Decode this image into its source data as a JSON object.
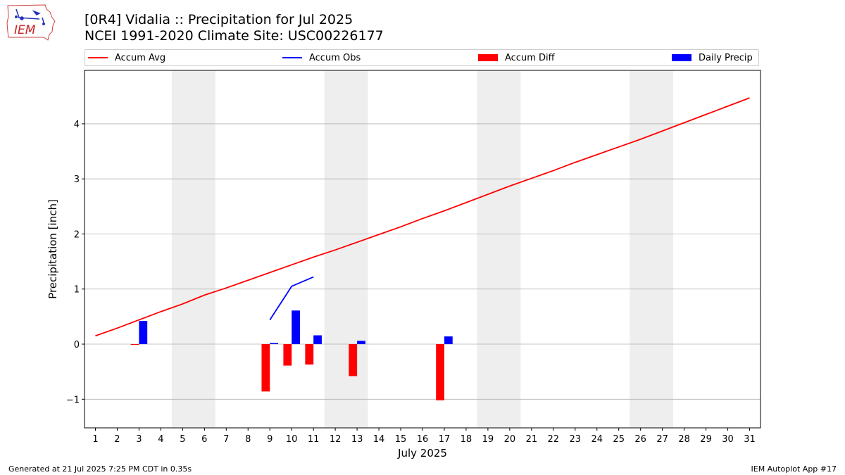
{
  "header": {
    "title_line1": "[0R4] Vidalia :: Precipitation for Jul 2025",
    "title_line2": "NCEI 1991-2020 Climate Site: USC00226177",
    "logo_text": "IEM"
  },
  "footer": {
    "generated": "Generated at 21 Jul 2025 7:25 PM CDT in 0.35s",
    "app": "IEM Autoplot App #17"
  },
  "colors": {
    "avg": "#ff0000",
    "obs": "#0000ff",
    "diff": "#ff0000",
    "daily": "#0000ff",
    "weekend": "#eeeeee",
    "grid": "#b0b0b0"
  },
  "chart_data": {
    "type": "bar",
    "title": "[0R4] Vidalia :: Precipitation for Jul 2025",
    "subtitle": "NCEI 1991-2020 Climate Site: USC00226177",
    "xlabel": "July 2025",
    "ylabel": "Precipitation [inch]",
    "xlim": [
      0.5,
      31.5
    ],
    "ylim": [
      -1.52,
      4.97
    ],
    "yticks": [
      -1,
      0,
      1,
      2,
      3,
      4
    ],
    "ytick_labels": [
      "−1",
      "0",
      "1",
      "2",
      "3",
      "4"
    ],
    "legend_position": "top",
    "grid": "y",
    "categories": [
      "1",
      "2",
      "3",
      "4",
      "5",
      "6",
      "7",
      "8",
      "9",
      "10",
      "11",
      "12",
      "13",
      "14",
      "15",
      "16",
      "17",
      "18",
      "19",
      "20",
      "21",
      "22",
      "23",
      "24",
      "25",
      "26",
      "27",
      "28",
      "29",
      "30",
      "31"
    ],
    "weekend_spans": [
      [
        4.5,
        6.5
      ],
      [
        11.5,
        13.5
      ],
      [
        18.5,
        20.5
      ],
      [
        25.5,
        27.5
      ]
    ],
    "series": [
      {
        "name": "Accum Avg",
        "kind": "line",
        "x": [
          1,
          2,
          3,
          4,
          5,
          6,
          7,
          8,
          9,
          10,
          11,
          12,
          13,
          14,
          15,
          16,
          17,
          18,
          19,
          20,
          21,
          22,
          23,
          24,
          25,
          26,
          27,
          28,
          29,
          30,
          31
        ],
        "values": [
          0.15,
          0.29,
          0.44,
          0.59,
          0.73,
          0.89,
          1.02,
          1.16,
          1.3,
          1.44,
          1.58,
          1.71,
          1.85,
          1.99,
          2.13,
          2.28,
          2.42,
          2.57,
          2.72,
          2.87,
          3.01,
          3.15,
          3.3,
          3.44,
          3.58,
          3.72,
          3.87,
          4.02,
          4.17,
          4.32,
          4.47
        ]
      },
      {
        "name": "Accum Obs",
        "kind": "line",
        "x": [
          9,
          10,
          11
        ],
        "values": [
          0.44,
          1.05,
          1.22
        ]
      },
      {
        "name": "Accum Diff",
        "kind": "bar",
        "x": [
          3,
          9,
          10,
          11,
          13,
          17
        ],
        "values": [
          -0.01,
          -0.86,
          -0.39,
          -0.37,
          -0.58,
          -1.02
        ]
      },
      {
        "name": "Daily Precip",
        "kind": "bar",
        "x": [
          3,
          9,
          10,
          11,
          13,
          17
        ],
        "values": [
          0.42,
          0.02,
          0.61,
          0.16,
          0.06,
          0.14
        ]
      }
    ]
  }
}
